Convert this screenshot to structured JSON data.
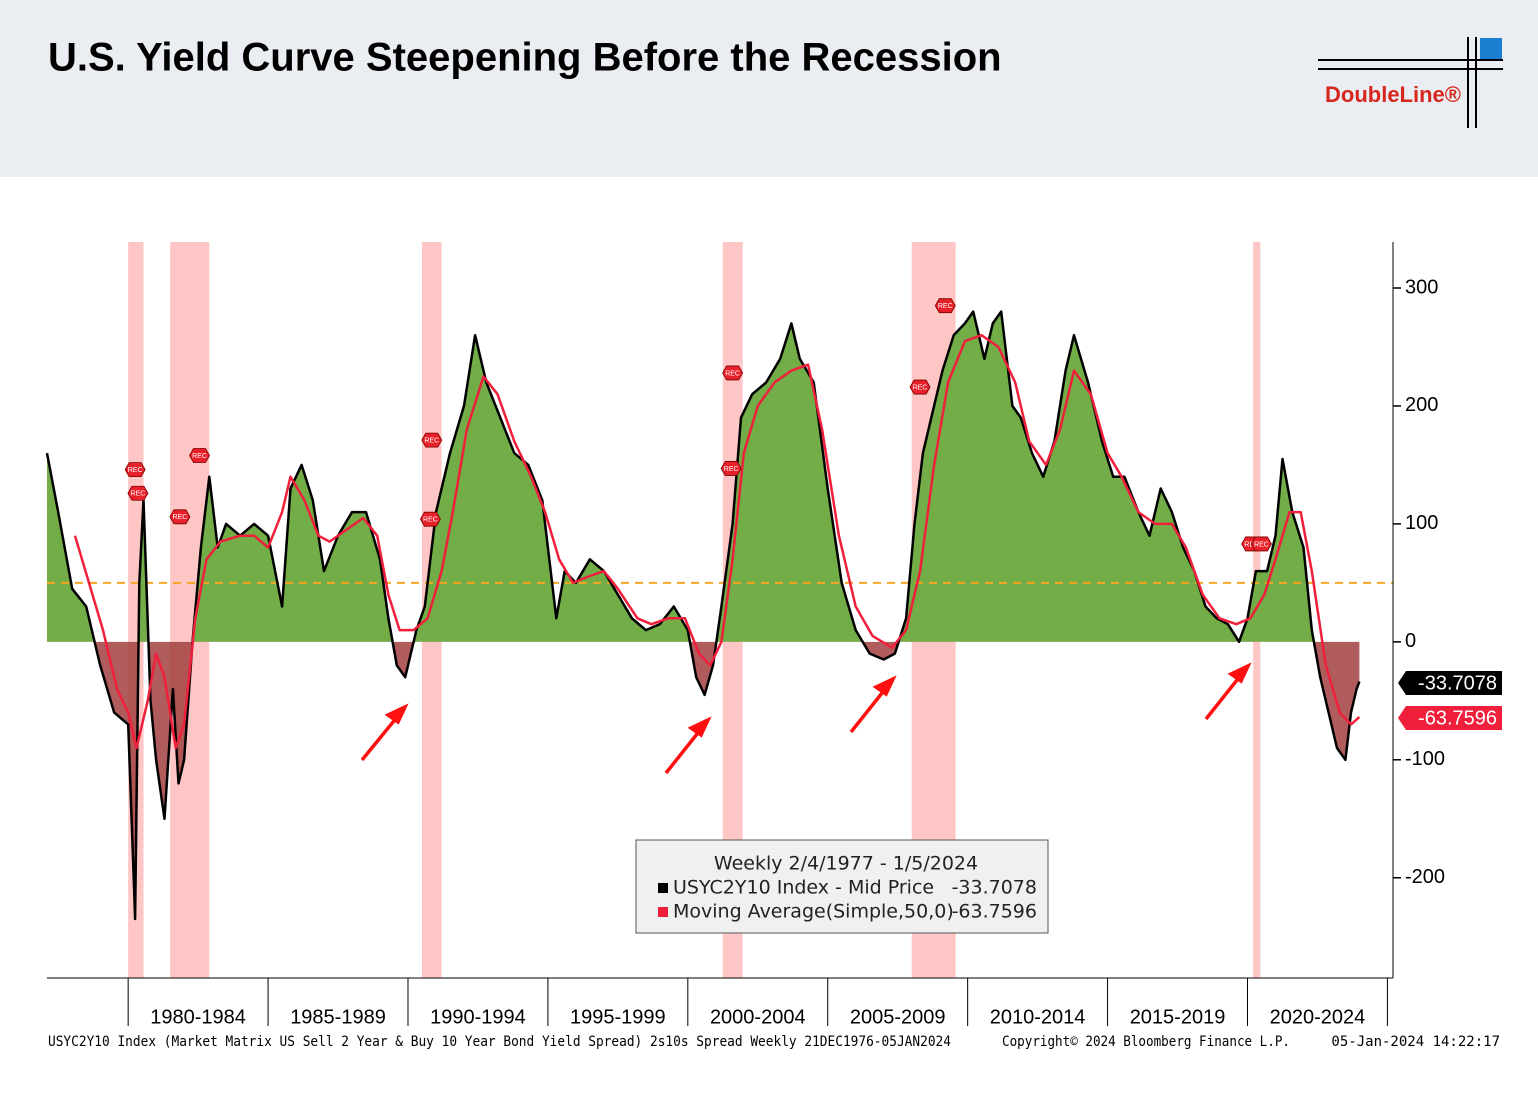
{
  "chart_data": {
    "type": "line",
    "title": "U.S. Yield Curve Steepening Before the Recession",
    "logo": "DoubleLine®",
    "legend_title": "Weekly 2/4/1977 - 1/5/2024",
    "footer_left": "USYC2Y10 Index (Market Matrix US Sell 2 Year & Buy 10 Year Bond Yield Spread) 2s10s Spread  Weekly 21DEC1976-05JAN2024",
    "footer_mid": "Copyright© 2024 Bloomberg Finance L.P.",
    "footer_right": "05-Jan-2024 14:22:17",
    "categories": [
      "1980-1984",
      "1985-1989",
      "1990-1994",
      "1995-1999",
      "2000-2004",
      "2005-2009",
      "2010-2014",
      "2015-2019",
      "2020-2024"
    ],
    "xlim": [
      1977.1,
      2025.2
    ],
    "xticks": [
      1980,
      1985,
      1990,
      1995,
      2000,
      2005,
      2010,
      2015,
      2020,
      2025
    ],
    "ylim": [
      -285,
      339
    ],
    "yticks": [
      300,
      200,
      100,
      0,
      -100,
      -200
    ],
    "fill_positive": "#72ad47",
    "fill_negative": "#a3403f",
    "reference_line": 50,
    "reference_color": "#f5a623",
    "recession_color": "#ffb3b3",
    "recessions": [
      [
        1980.0,
        1980.55
      ],
      [
        1981.5,
        1982.9
      ],
      [
        1990.5,
        1991.2
      ],
      [
        2001.25,
        2001.96
      ],
      [
        2008.0,
        2009.57
      ],
      [
        2020.2,
        2020.46
      ]
    ],
    "annotations": [
      {
        "x": 1980.25,
        "y": 146,
        "text": "REC"
      },
      {
        "x": 1980.35,
        "y": 126,
        "text": "REC"
      },
      {
        "x": 1981.85,
        "y": 106,
        "text": "REC"
      },
      {
        "x": 1982.55,
        "y": 158,
        "text": "REC"
      },
      {
        "x": 1990.85,
        "y": 171,
        "text": "REC"
      },
      {
        "x": 1990.8,
        "y": 104,
        "text": "REC"
      },
      {
        "x": 2001.6,
        "y": 228,
        "text": "REC"
      },
      {
        "x": 2001.55,
        "y": 147,
        "text": "REC"
      },
      {
        "x": 2008.3,
        "y": 216,
        "text": "REC"
      },
      {
        "x": 2009.2,
        "y": 285,
        "text": "REC"
      },
      {
        "x": 2020.15,
        "y": 83,
        "text": "REC"
      },
      {
        "x": 2020.5,
        "y": 83,
        "text": "REC"
      }
    ],
    "series": [
      {
        "name": "USYC2Y10 Index - Mid Price",
        "color": "#000000",
        "fill": true,
        "x": [
          1977.1,
          1977.5,
          1978.0,
          1978.5,
          1979.0,
          1979.5,
          1980.0,
          1980.2,
          1980.25,
          1980.4,
          1980.55,
          1980.8,
          1981.0,
          1981.3,
          1981.6,
          1981.8,
          1982.0,
          1982.3,
          1982.6,
          1982.9,
          1983.2,
          1983.5,
          1984.0,
          1984.5,
          1985.0,
          1985.5,
          1985.8,
          1986.2,
          1986.6,
          1987.0,
          1987.5,
          1988.0,
          1988.5,
          1989.0,
          1989.3,
          1989.6,
          1989.9,
          1990.3,
          1990.6,
          1991.0,
          1991.5,
          1992.0,
          1992.4,
          1992.8,
          1993.3,
          1993.8,
          1994.3,
          1994.8,
          1995.0,
          1995.3,
          1995.6,
          1996.0,
          1996.5,
          1997.0,
          1997.5,
          1998.0,
          1998.5,
          1999.0,
          1999.5,
          2000.0,
          2000.3,
          2000.6,
          2000.9,
          2001.2,
          2001.6,
          2001.9,
          2002.3,
          2002.8,
          2003.3,
          2003.7,
          2004.0,
          2004.5,
          2005.0,
          2005.5,
          2006.0,
          2006.5,
          2007.0,
          2007.4,
          2007.8,
          2008.1,
          2008.4,
          2008.8,
          2009.1,
          2009.5,
          2009.9,
          2010.2,
          2010.6,
          2010.9,
          2011.2,
          2011.6,
          2011.9,
          2012.3,
          2012.7,
          2013.1,
          2013.5,
          2013.8,
          2014.3,
          2014.8,
          2015.2,
          2015.6,
          2016.1,
          2016.5,
          2016.9,
          2017.3,
          2017.7,
          2018.1,
          2018.5,
          2018.9,
          2019.3,
          2019.7,
          2020.0,
          2020.3,
          2020.7,
          2021.0,
          2021.25,
          2021.6,
          2022.0,
          2022.3,
          2022.6,
          2022.9,
          2023.2,
          2023.5,
          2023.7,
          2023.9,
          2024.0
        ],
        "values": [
          160,
          110,
          45,
          30,
          -20,
          -60,
          -70,
          -200,
          -235,
          50,
          120,
          -50,
          -100,
          -150,
          -40,
          -120,
          -100,
          0,
          80,
          140,
          80,
          100,
          90,
          100,
          90,
          30,
          130,
          150,
          120,
          60,
          90,
          110,
          110,
          70,
          20,
          -20,
          -30,
          10,
          30,
          110,
          160,
          200,
          260,
          220,
          190,
          160,
          150,
          120,
          80,
          20,
          60,
          50,
          70,
          60,
          40,
          20,
          10,
          15,
          30,
          10,
          -30,
          -45,
          -20,
          30,
          100,
          190,
          210,
          220,
          240,
          270,
          240,
          220,
          130,
          50,
          10,
          -10,
          -15,
          -10,
          20,
          100,
          160,
          200,
          230,
          260,
          270,
          280,
          240,
          270,
          280,
          200,
          190,
          160,
          140,
          170,
          230,
          260,
          220,
          170,
          140,
          140,
          110,
          90,
          130,
          110,
          80,
          60,
          30,
          20,
          15,
          0,
          20,
          60,
          60,
          90,
          155,
          110,
          80,
          10,
          -30,
          -60,
          -90,
          -100,
          -60,
          -40,
          -33.7078
        ]
      },
      {
        "name": "Moving Average(Simple,50,0)",
        "color": "#f0203c",
        "fill": false,
        "x": [
          1978.1,
          1978.6,
          1979.1,
          1979.6,
          1980.0,
          1980.3,
          1980.7,
          1981.0,
          1981.3,
          1981.7,
          1982.0,
          1982.4,
          1982.8,
          1983.3,
          1984.0,
          1984.5,
          1985.0,
          1985.5,
          1985.8,
          1986.3,
          1986.8,
          1987.2,
          1987.8,
          1988.4,
          1988.9,
          1989.3,
          1989.7,
          1990.2,
          1990.7,
          1991.2,
          1991.6,
          1992.1,
          1992.7,
          1993.2,
          1993.8,
          1994.4,
          1994.9,
          1995.4,
          1995.9,
          1996.4,
          1997.0,
          1997.5,
          1998.2,
          1998.7,
          1999.3,
          1999.9,
          2000.4,
          2000.8,
          2001.2,
          2001.6,
          2002.0,
          2002.5,
          2003.1,
          2003.7,
          2004.3,
          2004.8,
          2005.4,
          2006.0,
          2006.6,
          2007.3,
          2007.8,
          2008.3,
          2008.8,
          2009.3,
          2009.9,
          2010.5,
          2011.1,
          2011.7,
          2012.2,
          2012.8,
          2013.3,
          2013.8,
          2014.4,
          2015.0,
          2015.5,
          2016.1,
          2016.7,
          2017.3,
          2017.8,
          2018.4,
          2019.0,
          2019.6,
          2020.1,
          2020.6,
          2021.0,
          2021.5,
          2021.9,
          2022.3,
          2022.8,
          2023.3,
          2023.7,
          2024.0
        ],
        "values": [
          90,
          50,
          10,
          -40,
          -60,
          -90,
          -50,
          -10,
          -30,
          -90,
          -70,
          20,
          70,
          85,
          90,
          90,
          80,
          110,
          140,
          120,
          90,
          85,
          95,
          105,
          90,
          40,
          10,
          10,
          20,
          60,
          110,
          180,
          225,
          210,
          170,
          140,
          110,
          70,
          50,
          55,
          60,
          45,
          20,
          15,
          20,
          20,
          -10,
          -20,
          0,
          70,
          160,
          200,
          220,
          230,
          235,
          180,
          90,
          30,
          5,
          -5,
          10,
          60,
          150,
          220,
          255,
          260,
          250,
          220,
          170,
          150,
          180,
          230,
          210,
          160,
          140,
          110,
          100,
          100,
          80,
          40,
          20,
          15,
          20,
          40,
          70,
          110,
          110,
          60,
          -20,
          -60,
          -70,
          -63.7596
        ]
      }
    ]
  }
}
